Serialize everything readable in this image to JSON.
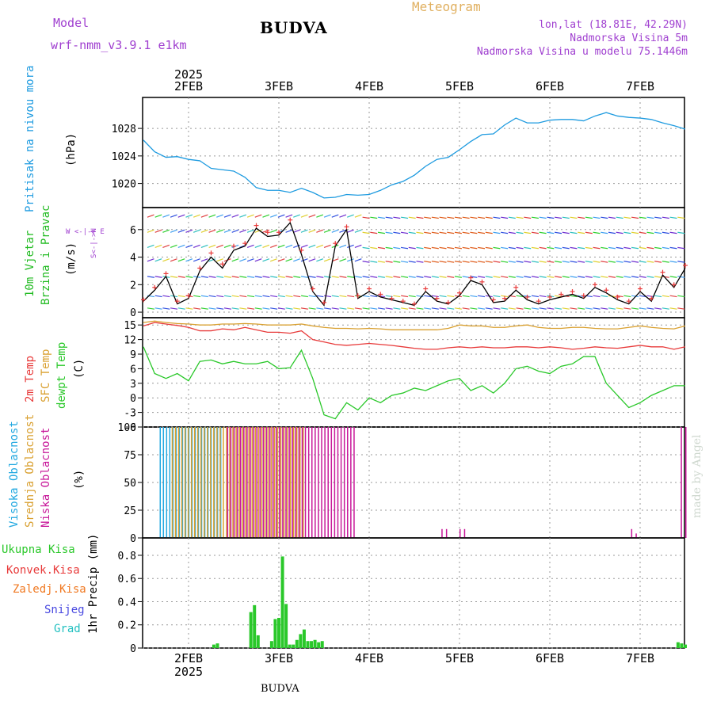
{
  "header": {
    "model_label": "Model",
    "model_name": "wrf-nmm_v3.9.1 e1km",
    "station": "BUDVA",
    "product": "Meteogram",
    "coords": "lon,lat (18.81E, 42.29N)",
    "elevation": "Nadmorska Visina 5m",
    "model_elevation": "Nadmorska Visina u modelu 75.1446m"
  },
  "footer": {
    "station": "BUDVA",
    "credit": "made by Angel"
  },
  "colors": {
    "pressure": "#1e9be0",
    "t2m": "#e83a3a",
    "sfc": "#d9a030",
    "dewpt": "#2ac82a",
    "cloud_high": "#22a8e0",
    "cloud_mid": "#d9a030",
    "cloud_low": "#c8189a",
    "precip": "#2ac82a",
    "wind_label": "#22bb22",
    "purple": "#a040d0"
  },
  "chart_data": [
    {
      "type": "line",
      "panel": "pressure",
      "ylabel_left": "Pritisak na nivou mora",
      "unit": "(hPa)",
      "top_year": "2025",
      "x_ticks": [
        "2FEB",
        "3FEB",
        "4FEB",
        "5FEB",
        "6FEB",
        "7FEB"
      ],
      "ylim": [
        1016.5,
        1032.5
      ],
      "yticks": [
        1020,
        1024,
        1028
      ],
      "grid": true,
      "x": [
        0,
        0.125,
        0.25,
        0.375,
        0.5,
        0.625,
        0.75,
        0.875,
        1,
        1.125,
        1.25,
        1.375,
        1.5,
        1.625,
        1.75,
        1.875,
        2,
        2.125,
        2.25,
        2.375,
        2.5,
        2.625,
        2.75,
        2.875,
        3,
        3.125,
        3.25,
        3.375,
        3.5,
        3.625,
        3.75,
        3.875,
        4,
        4.125,
        4.25,
        4.375,
        4.5,
        4.625,
        4.75,
        4.875,
        5,
        5.125,
        5.25,
        5.375,
        5.5,
        5.625,
        5.75,
        5.875,
        6
      ],
      "values": [
        1026.3,
        1024.6,
        1023.8,
        1023.9,
        1023.5,
        1023.3,
        1022.2,
        1022,
        1021.8,
        1020.9,
        1019.4,
        1019,
        1019,
        1018.7,
        1019.3,
        1018.7,
        1017.9,
        1018,
        1018.4,
        1018.3,
        1018.4,
        1019,
        1019.8,
        1020.3,
        1021.2,
        1022.5,
        1023.5,
        1023.8,
        1024.9,
        1026.1,
        1027.1,
        1027.2,
        1028.5,
        1029.5,
        1028.8,
        1028.8,
        1029.2,
        1029.3,
        1029.3,
        1029.1,
        1029.8,
        1030.3,
        1029.8,
        1029.6,
        1029.5,
        1029.3,
        1028.8,
        1028.4,
        1027.9
      ]
    },
    {
      "type": "line",
      "panel": "wind",
      "ylabel_left": [
        "10m Vjetar",
        "Brzina i Pravac"
      ],
      "unit": "(m/s)",
      "legend_small": "W <-|-> E",
      "legend_small2": "S<-|->N",
      "ylim": [
        -0.4,
        7.6
      ],
      "yticks": [
        0,
        2,
        4,
        6
      ],
      "grid": true,
      "x": [
        0,
        0.125,
        0.25,
        0.375,
        0.5,
        0.625,
        0.75,
        0.875,
        1,
        1.125,
        1.25,
        1.375,
        1.5,
        1.625,
        1.75,
        1.875,
        2,
        2.125,
        2.25,
        2.375,
        2.5,
        2.625,
        2.75,
        2.875,
        3,
        3.125,
        3.25,
        3.375,
        3.5,
        3.625,
        3.75,
        3.875,
        4,
        4.125,
        4.25,
        4.375,
        4.5,
        4.625,
        4.75,
        4.875,
        5,
        5.125,
        5.25,
        5.375,
        5.5,
        5.625,
        5.75,
        5.875,
        6
      ],
      "values": [
        0.8,
        1.6,
        2.6,
        0.6,
        1.0,
        3.0,
        4.0,
        3.2,
        4.5,
        4.8,
        6.1,
        5.5,
        5.6,
        6.5,
        4.2,
        1.5,
        0.5,
        4.8,
        6.0,
        1.0,
        1.5,
        1.1,
        0.9,
        0.7,
        0.5,
        1.5,
        0.8,
        0.6,
        1.2,
        2.3,
        2.0,
        0.7,
        0.8,
        1.6,
        0.9,
        0.6,
        0.9,
        1.1,
        1.3,
        1.0,
        1.8,
        1.4,
        0.9,
        0.6,
        1.5,
        0.8,
        2.7,
        1.8,
        3.2
      ],
      "gust_values": [
        0.9,
        1.8,
        2.8,
        0.8,
        1.2,
        3.2,
        4.3,
        3.5,
        4.8,
        5.0,
        6.3,
        5.8,
        5.8,
        6.7,
        4.5,
        1.7,
        0.7,
        5.0,
        6.2,
        1.2,
        1.7,
        1.3,
        1.0,
        0.8,
        0.6,
        1.7,
        1.0,
        0.7,
        1.4,
        2.5,
        2.2,
        0.9,
        1.0,
        1.8,
        1.1,
        0.8,
        1.1,
        1.3,
        1.5,
        1.2,
        2.0,
        1.6,
        1.1,
        0.8,
        1.7,
        1.0,
        2.9,
        2.0,
        3.4
      ]
    },
    {
      "type": "line",
      "panel": "temperature",
      "ylabel_left": [
        "2m Temp",
        "SFC Temp",
        "dewpt Temp"
      ],
      "unit": "(C)",
      "ylim": [
        -6,
        16.5
      ],
      "yticks": [
        -6,
        -3,
        0,
        3,
        6,
        9,
        12,
        15
      ],
      "grid": true,
      "x": [
        0,
        0.125,
        0.25,
        0.375,
        0.5,
        0.625,
        0.75,
        0.875,
        1,
        1.125,
        1.25,
        1.375,
        1.5,
        1.625,
        1.75,
        1.875,
        2,
        2.125,
        2.25,
        2.375,
        2.5,
        2.625,
        2.75,
        2.875,
        3,
        3.125,
        3.25,
        3.375,
        3.5,
        3.625,
        3.75,
        3.875,
        4,
        4.125,
        4.25,
        4.375,
        4.5,
        4.625,
        4.75,
        4.875,
        5,
        5.125,
        5.25,
        5.375,
        5.5,
        5.625,
        5.75,
        5.875,
        6
      ],
      "series": [
        {
          "name": "2m Temp",
          "values": [
            14.8,
            15.5,
            15.2,
            14.9,
            14.5,
            13.8,
            13.8,
            14.2,
            14.0,
            14.5,
            14.0,
            13.5,
            13.5,
            13.3,
            13.8,
            12.0,
            11.5,
            11.0,
            10.8,
            11.0,
            11.2,
            11.0,
            10.8,
            10.5,
            10.2,
            10.0,
            10.0,
            10.3,
            10.5,
            10.3,
            10.5,
            10.3,
            10.3,
            10.5,
            10.5,
            10.3,
            10.5,
            10.3,
            10.0,
            10.2,
            10.5,
            10.3,
            10.2,
            10.5,
            10.8,
            10.5,
            10.5,
            10.0,
            10.5
          ]
        },
        {
          "name": "SFC Temp",
          "values": [
            15.5,
            15.8,
            15.5,
            15.3,
            15.2,
            15.0,
            15.0,
            15.2,
            15.2,
            15.3,
            15.2,
            15.0,
            15.0,
            15.0,
            15.2,
            14.8,
            14.5,
            14.3,
            14.3,
            14.2,
            14.3,
            14.2,
            14.0,
            14.0,
            14.0,
            14.0,
            14.0,
            14.3,
            15.0,
            14.8,
            14.8,
            14.5,
            14.5,
            14.8,
            15.0,
            14.5,
            14.3,
            14.3,
            14.5,
            14.5,
            14.3,
            14.2,
            14.2,
            14.5,
            14.8,
            14.5,
            14.3,
            14.2,
            14.8
          ]
        },
        {
          "name": "dewpt Temp",
          "values": [
            10.5,
            5.0,
            4.0,
            5.0,
            3.5,
            7.5,
            7.8,
            7.0,
            7.5,
            7.0,
            7.0,
            7.5,
            6.0,
            6.2,
            9.8,
            4.0,
            -3.5,
            -4.3,
            -1.0,
            -2.5,
            0.0,
            -1.0,
            0.5,
            1.0,
            2.0,
            1.5,
            2.5,
            3.5,
            4.0,
            1.5,
            2.5,
            1.0,
            3.0,
            6.0,
            6.5,
            5.5,
            5.0,
            6.5,
            7.0,
            8.5,
            8.5,
            3.0,
            0.5,
            -2.0,
            -1.0,
            0.5,
            1.5,
            2.5,
            2.5
          ]
        }
      ]
    },
    {
      "type": "bar",
      "panel": "clouds",
      "ylabel_left": [
        "Visoka Oblacnost",
        "Srednja Oblacnost",
        "Niska Oblacnost"
      ],
      "unit": "(%)",
      "ylim": [
        0,
        100
      ],
      "yticks": [
        0,
        25,
        50,
        75,
        100
      ],
      "grid": true,
      "series": [
        {
          "name": "Visoka Oblacnost",
          "x_range": [
            0.18,
            0.85
          ],
          "value": 100,
          "note": "0-100 bars"
        },
        {
          "name": "Srednja Oblacnost",
          "x_range": [
            0.3,
            1.75
          ],
          "value": 100
        },
        {
          "name": "Niska Oblacnost",
          "x_range": [
            0.9,
            2.3
          ],
          "value": 100
        }
      ],
      "extra_low_x": [
        3.3,
        3.35,
        3.5,
        3.55,
        5.4,
        5.45,
        5.95,
        6.0
      ],
      "extra_low_values": [
        8,
        8,
        8,
        8,
        8,
        4,
        100,
        100
      ]
    },
    {
      "type": "bar",
      "panel": "precip",
      "ylabel_left": [
        "Ukupna Kisa",
        "Konvek.Kisa",
        "Zaledj.Kisa",
        "Snijeg",
        "Grad"
      ],
      "unit": "1hr Precip (mm)",
      "x_ticks": [
        "2FEB",
        "3FEB",
        "4FEB",
        "5FEB",
        "6FEB",
        "7FEB"
      ],
      "bottom_year": "2025",
      "ylim": [
        0,
        0.95
      ],
      "yticks": [
        0,
        0.2,
        0.4,
        0.6,
        0.8
      ],
      "grid": true,
      "x": [
        0.78,
        0.82,
        1.19,
        1.23,
        1.27,
        1.42,
        1.46,
        1.5,
        1.54,
        1.58,
        1.62,
        1.66,
        1.7,
        1.74,
        1.78,
        1.82,
        1.86,
        1.9,
        1.94,
        1.98,
        5.92,
        5.96,
        6.0
      ],
      "values": [
        0.03,
        0.04,
        0.31,
        0.37,
        0.11,
        0.06,
        0.25,
        0.26,
        0.79,
        0.38,
        0.03,
        0.03,
        0.07,
        0.12,
        0.16,
        0.06,
        0.06,
        0.07,
        0.05,
        0.06,
        0.05,
        0.04,
        0.03
      ]
    }
  ],
  "legend_texts": {
    "wind_scale_w": "W",
    "wind_scale_arrows": "<-|->",
    "wind_scale_e": "E"
  }
}
